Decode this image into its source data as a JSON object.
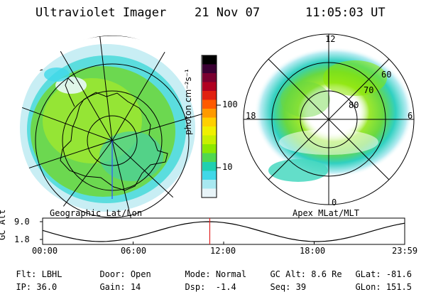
{
  "header": {
    "instrument": "Ultraviolet Imager",
    "date": "21 Nov 07",
    "time": "11:05:03 UT"
  },
  "colorbar": {
    "label": "photon cm⁻²s⁻¹",
    "ticks": [
      "100",
      "10"
    ],
    "colors": [
      "#000000",
      "#3a0033",
      "#7a0030",
      "#b00020",
      "#e02010",
      "#ff5a00",
      "#ff9a00",
      "#ffd000",
      "#f0f000",
      "#c8f000",
      "#8ce800",
      "#50d850",
      "#20d0b0",
      "#40d8e8",
      "#a8e8f0",
      "#e8f4f8"
    ]
  },
  "left_panel": {
    "label": "Geographic Lat/Lon"
  },
  "right_panel": {
    "label": "Apex MLat/MLT",
    "mlt_labels": {
      "top": "12",
      "left": "18",
      "right": "6",
      "bottom": "0"
    },
    "lat_labels": [
      "60",
      "70",
      "80"
    ]
  },
  "gc_alt_plot": {
    "ylabel": "GC Alt",
    "yticks": [
      "9.0",
      "1.8"
    ],
    "xticks": [
      "00:00",
      "06:00",
      "12:00",
      "18:00",
      "23:59"
    ],
    "marker_hour": 11.08
  },
  "info": {
    "row1": [
      {
        "label": "Flt:",
        "value": "LBHL"
      },
      {
        "label": "Door:",
        "value": "Open"
      },
      {
        "label": "Mode:",
        "value": "Normal"
      },
      {
        "label": "GC Alt:",
        "value": "8.6 Re"
      },
      {
        "label": "GLat:",
        "value": "-81.6"
      }
    ],
    "row2": [
      {
        "label": "IP:",
        "value": "36.0"
      },
      {
        "label": "Gain:",
        "value": "14"
      },
      {
        "label": "Dsp:",
        "value": "  -1.4"
      },
      {
        "label": "Seq:",
        "value": "39"
      },
      {
        "label": "GLon:",
        "value": "151.5"
      }
    ]
  }
}
